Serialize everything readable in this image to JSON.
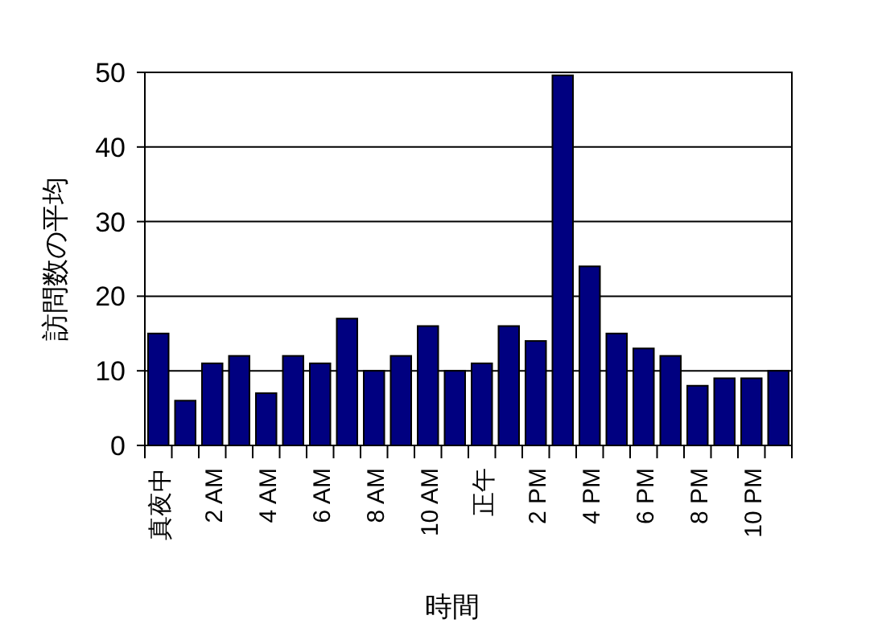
{
  "chart_data": {
    "type": "bar",
    "xlabel": "時間",
    "ylabel": "訪問数の平均",
    "categories": [
      "真夜中",
      null,
      "2 AM",
      null,
      "4 AM",
      null,
      "6 AM",
      null,
      "8 AM",
      null,
      "10 AM",
      null,
      "正午",
      null,
      "2 PM",
      null,
      "4 PM",
      null,
      "6 PM",
      null,
      "8 PM",
      null,
      "10 PM",
      null
    ],
    "values": [
      15,
      6,
      11,
      12,
      7,
      12,
      11,
      17,
      10,
      12,
      16,
      10,
      11,
      16,
      14,
      49.6,
      24,
      15,
      13,
      12,
      8,
      9,
      9,
      10
    ],
    "color": "#000080",
    "ylim": [
      0,
      50
    ],
    "yticks": [
      0,
      10,
      20,
      30,
      40,
      50
    ],
    "grid": "y"
  }
}
